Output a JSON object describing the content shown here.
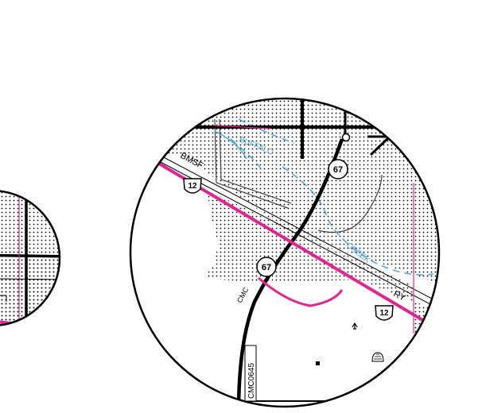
{
  "colors": {
    "background": "#ffffff",
    "dot_pattern": "#000000",
    "road_major": "#000000",
    "road_minor": "#333333",
    "boundary": "#e0268f",
    "water": "#4aa3df"
  },
  "labels": {
    "railroad": "BMSF",
    "railroad_abbrev": "RY",
    "creek_upper": "BUFFALO",
    "creek_lower": "CREEK",
    "county_road": "CMC",
    "route_code": "CMC0645"
  },
  "shields": {
    "us_highway_left": "12",
    "us_highway_right": "12",
    "state_route_top": "67",
    "state_route_mid": "67"
  },
  "symbols": {
    "church": "church-icon",
    "building": "building-icon",
    "hatched_feature": "hatched-feature-icon",
    "junction_point": "junction-point-icon"
  }
}
